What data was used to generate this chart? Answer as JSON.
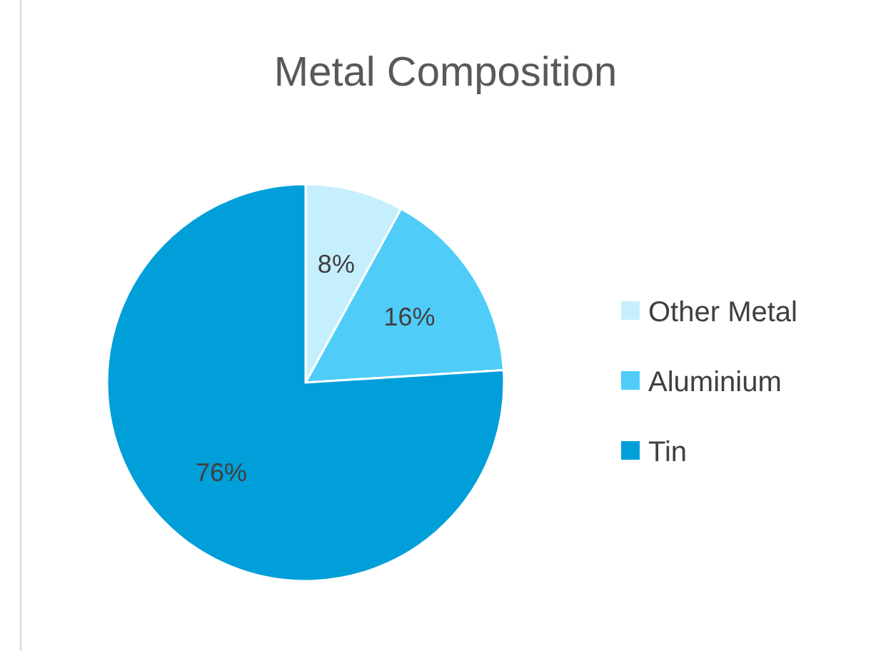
{
  "chart_data": {
    "type": "pie",
    "title": "Metal Composition",
    "categories": [
      "Other Metal",
      "Aluminium",
      "Tin"
    ],
    "values": [
      8,
      16,
      76
    ],
    "colors": [
      "#c6effd",
      "#4fcdf8",
      "#009fd9"
    ],
    "value_labels": [
      "8%",
      "16%",
      "76%"
    ],
    "legend": "right"
  }
}
